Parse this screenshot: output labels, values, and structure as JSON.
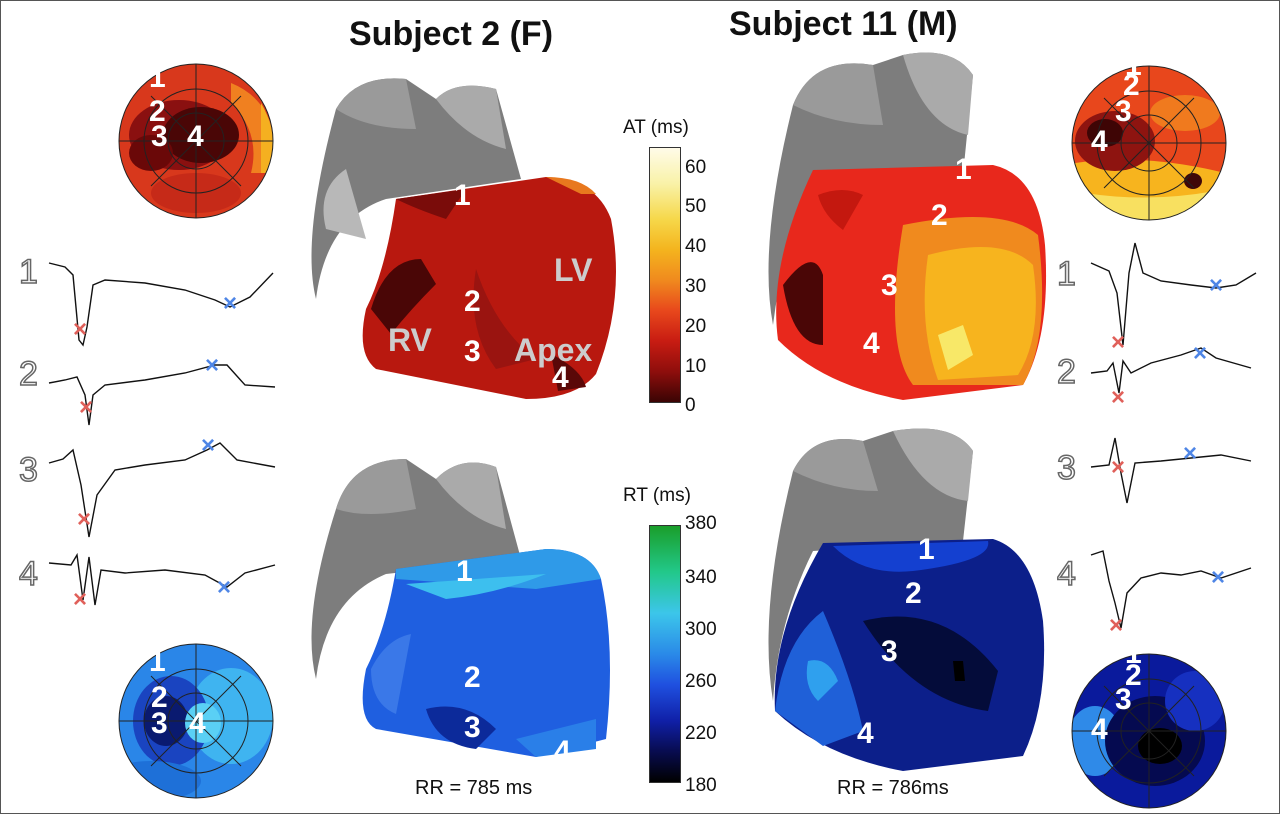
{
  "titles": {
    "left": "Subject 2 (F)",
    "right": "Subject 11 (M)"
  },
  "colorbars": {
    "at": {
      "title": "AT (ms)",
      "ticks": [
        "60",
        "50",
        "40",
        "30",
        "20",
        "10",
        "0"
      ]
    },
    "rt": {
      "title": "RT (ms)",
      "ticks": [
        "380",
        "340",
        "300",
        "260",
        "220",
        "180"
      ]
    }
  },
  "rr": {
    "left": "RR = 785 ms",
    "right": "RR = 786ms"
  },
  "region_labels": {
    "rv": "RV",
    "lv": "LV",
    "apex": "Apex"
  },
  "site_numbers": [
    "1",
    "2",
    "3",
    "4"
  ],
  "marker": "×",
  "colors": {
    "activation_marker": "#e0605a",
    "repolarization_marker": "#4f86e6"
  }
}
